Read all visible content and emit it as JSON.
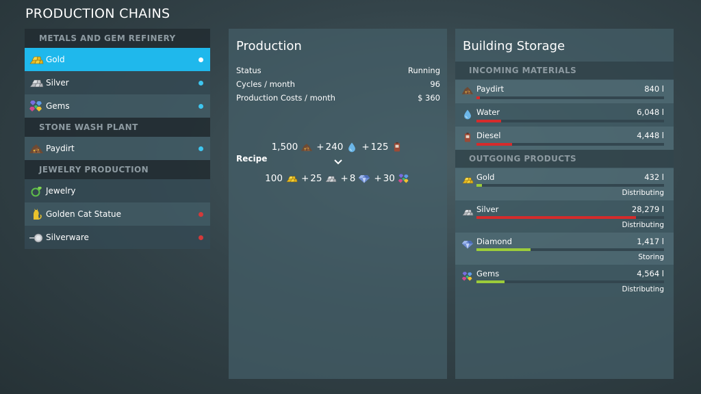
{
  "page_title": "PRODUCTION CHAINS",
  "chains": {
    "sections": [
      {
        "header": "METALS AND GEM REFINERY",
        "items": [
          {
            "label": "Gold",
            "icon": "gold-bars-icon",
            "dot_color": "#ffffff",
            "selected": true
          },
          {
            "label": "Silver",
            "icon": "silver-bars-icon",
            "dot_color": "#3ec6f0"
          },
          {
            "label": "Gems",
            "icon": "gems-icon",
            "dot_color": "#3ec6f0"
          }
        ]
      },
      {
        "header": "STONE WASH PLANT",
        "items": [
          {
            "label": "Paydirt",
            "icon": "paydirt-icon",
            "dot_color": "#3ec6f0"
          }
        ]
      },
      {
        "header": "JEWELRY PRODUCTION",
        "items": [
          {
            "label": "Jewelry",
            "icon": "ring-icon",
            "dot_color": null
          },
          {
            "label": "Golden Cat Statue",
            "icon": "cat-statue-icon",
            "dot_color": "#d33a3a"
          },
          {
            "label": "Silverware",
            "icon": "silverware-icon",
            "dot_color": "#d33a3a"
          }
        ]
      }
    ]
  },
  "production": {
    "title": "Production",
    "stats": [
      {
        "label": "Status",
        "value": "Running"
      },
      {
        "label": "Cycles / month",
        "value": "96"
      },
      {
        "label": "Production Costs / month",
        "value": "$ 360"
      }
    ],
    "recipe_label": "Recipe",
    "inputs": [
      {
        "amount": "1,500",
        "icon": "paydirt-icon",
        "prefix": ""
      },
      {
        "amount": "240",
        "icon": "water-icon",
        "prefix": "+"
      },
      {
        "amount": "125",
        "icon": "diesel-icon",
        "prefix": "+"
      }
    ],
    "outputs": [
      {
        "amount": "100",
        "icon": "gold-bars-icon",
        "prefix": ""
      },
      {
        "amount": "25",
        "icon": "silver-bars-icon",
        "prefix": "+"
      },
      {
        "amount": "8",
        "icon": "diamond-icon",
        "prefix": "+"
      },
      {
        "amount": "30",
        "icon": "gems-icon",
        "prefix": "+"
      }
    ]
  },
  "storage": {
    "title": "Building Storage",
    "incoming_header": "INCOMING MATERIALS",
    "outgoing_header": "OUTGOING PRODUCTS",
    "incoming": [
      {
        "name": "Paydirt",
        "amount": "840 l",
        "fill": 0.02,
        "bar_color": "#d62b2b",
        "icon": "paydirt-icon"
      },
      {
        "name": "Water",
        "amount": "6,048 l",
        "fill": 0.13,
        "bar_color": "#d62b2b",
        "icon": "water-icon"
      },
      {
        "name": "Diesel",
        "amount": "4,448 l",
        "fill": 0.19,
        "bar_color": "#d62b2b",
        "icon": "diesel-icon"
      }
    ],
    "outgoing": [
      {
        "name": "Gold",
        "amount": "432 l",
        "fill": 0.03,
        "bar_color": "#9ccc3a",
        "status": "Distributing",
        "icon": "gold-bars-icon"
      },
      {
        "name": "Silver",
        "amount": "28,279 l",
        "fill": 0.85,
        "bar_color": "#d62b2b",
        "status": "Distributing",
        "icon": "silver-bars-icon"
      },
      {
        "name": "Diamond",
        "amount": "1,417 l",
        "fill": 0.29,
        "bar_color": "#9ccc3a",
        "status": "Storing",
        "icon": "diamond-icon"
      },
      {
        "name": "Gems",
        "amount": "4,564 l",
        "fill": 0.15,
        "bar_color": "#9ccc3a",
        "status": "Distributing",
        "icon": "gems-icon"
      }
    ]
  }
}
